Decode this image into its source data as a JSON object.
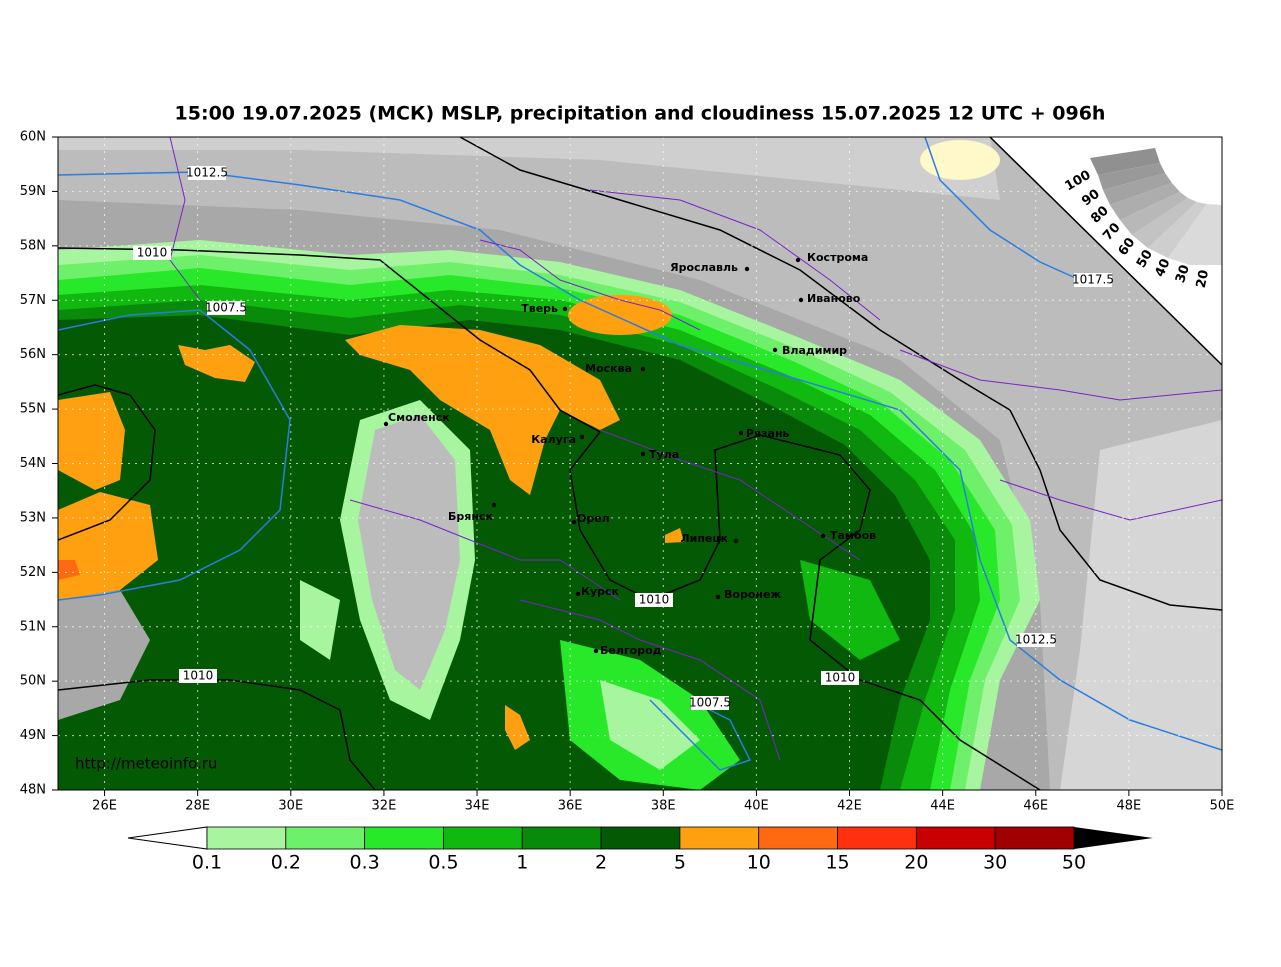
{
  "title": "15:00 19.07.2025 (МСК) MSLP, precipitation and cloudiness 15.07.2025 12 UTC + 096h",
  "map": {
    "lat_labels": [
      "60N",
      "59N",
      "58N",
      "57N",
      "56N",
      "55N",
      "54N",
      "53N",
      "52N",
      "51N",
      "50N",
      "49N",
      "48N"
    ],
    "lon_labels": [
      "26E",
      "28E",
      "30E",
      "32E",
      "34E",
      "36E",
      "38E",
      "40E",
      "42E",
      "44E",
      "46E",
      "48E",
      "50E"
    ],
    "cities": [
      "Кострома",
      "Ярославль",
      "Иваново",
      "Тверь",
      "Владимир",
      "Москва",
      "Смоленск",
      "Калуга",
      "Рязань",
      "Тула",
      "Брянск",
      "Орел",
      "Липецк",
      "Тамбов",
      "Курск",
      "Воронеж",
      "Белгород"
    ],
    "isobar_labels": [
      "1012.5",
      "1010",
      "1007.5",
      "1017.5",
      "1010",
      "1012.5",
      "1010",
      "1010",
      "1007.5"
    ],
    "cloud_labels": [
      "100",
      "90",
      "80",
      "70",
      "60",
      "50",
      "40",
      "30",
      "20"
    ],
    "url": "http://meteoinfo.ru"
  },
  "colorbar": {
    "labels": [
      "0.1",
      "0.2",
      "0.3",
      "0.5",
      "1",
      "2",
      "5",
      "10",
      "15",
      "20",
      "30",
      "50"
    ]
  }
}
